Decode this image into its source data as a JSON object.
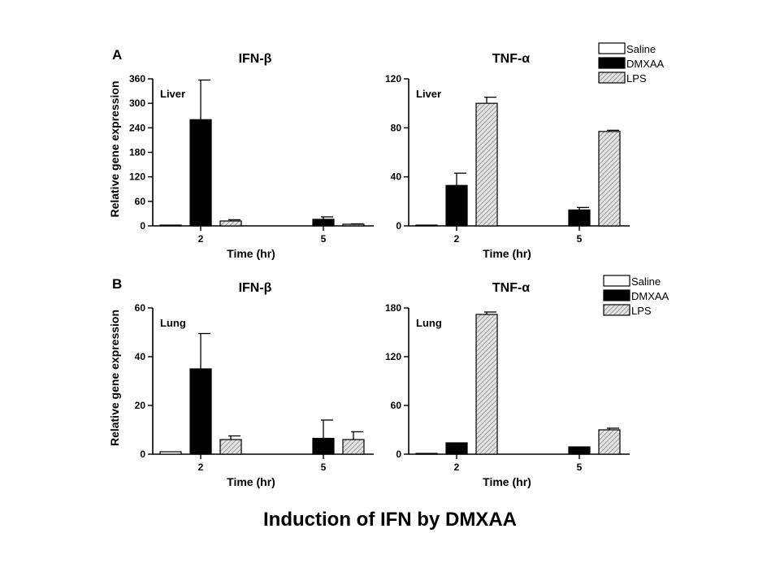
{
  "caption": "Induction of IFN by DMXAA",
  "legend": {
    "entries": [
      {
        "label": "Saline",
        "style": "white"
      },
      {
        "label": "DMXAA",
        "style": "black"
      },
      {
        "label": "LPS",
        "style": "hatched"
      }
    ]
  },
  "colors": {
    "dmxaa": "#000000",
    "saline": "#ffffff",
    "lps_hatch": "#8a8a8a"
  },
  "chart_data": [
    {
      "type": "bar",
      "panel_letter": "A",
      "title": "IFN-β",
      "tissue": "Liver",
      "xlabel": "Time (hr)",
      "ylabel": "Relative gene expression",
      "ylim": [
        0,
        360
      ],
      "yticks": [
        0,
        60,
        120,
        180,
        240,
        300,
        360
      ],
      "categories": [
        "2",
        "5"
      ],
      "series": [
        {
          "name": "Saline",
          "values": [
            1,
            0
          ],
          "errors": [
            0,
            0
          ]
        },
        {
          "name": "DMXAA",
          "values": [
            260,
            16
          ],
          "errors": [
            97,
            6
          ]
        },
        {
          "name": "LPS",
          "values": [
            12,
            4
          ],
          "errors": [
            3,
            1
          ]
        }
      ]
    },
    {
      "type": "bar",
      "panel_letter": "",
      "title": "TNF-α",
      "tissue": "Liver",
      "xlabel": "Time (hr)",
      "ylabel": "",
      "ylim": [
        0,
        120
      ],
      "yticks": [
        0,
        40,
        80,
        120
      ],
      "categories": [
        "2",
        "5"
      ],
      "series": [
        {
          "name": "Saline",
          "values": [
            0.5,
            0
          ],
          "errors": [
            0,
            0
          ]
        },
        {
          "name": "DMXAA",
          "values": [
            33,
            13
          ],
          "errors": [
            10,
            2
          ]
        },
        {
          "name": "LPS",
          "values": [
            100,
            77
          ],
          "errors": [
            5,
            1
          ]
        }
      ]
    },
    {
      "type": "bar",
      "panel_letter": "B",
      "title": "IFN-β",
      "tissue": "Lung",
      "xlabel": "Time (hr)",
      "ylabel": "Relative gene expression",
      "ylim": [
        0,
        60
      ],
      "yticks": [
        0,
        20,
        40,
        60
      ],
      "categories": [
        "2",
        "5"
      ],
      "series": [
        {
          "name": "Saline",
          "values": [
            1,
            0
          ],
          "errors": [
            0,
            0
          ]
        },
        {
          "name": "DMXAA",
          "values": [
            35,
            6.5
          ],
          "errors": [
            14.5,
            7.5
          ]
        },
        {
          "name": "LPS",
          "values": [
            6,
            6
          ],
          "errors": [
            1.5,
            3.2
          ]
        }
      ]
    },
    {
      "type": "bar",
      "panel_letter": "",
      "title": "TNF-α",
      "tissue": "Lung",
      "xlabel": "Time (hr)",
      "ylabel": "",
      "ylim": [
        0,
        180
      ],
      "yticks": [
        0,
        60,
        120,
        180
      ],
      "categories": [
        "2",
        "5"
      ],
      "series": [
        {
          "name": "Saline",
          "values": [
            0.5,
            0
          ],
          "errors": [
            0,
            0
          ]
        },
        {
          "name": "DMXAA",
          "values": [
            14,
            9
          ],
          "errors": [
            0,
            0
          ]
        },
        {
          "name": "LPS",
          "values": [
            172,
            30
          ],
          "errors": [
            3,
            2
          ]
        }
      ]
    }
  ]
}
